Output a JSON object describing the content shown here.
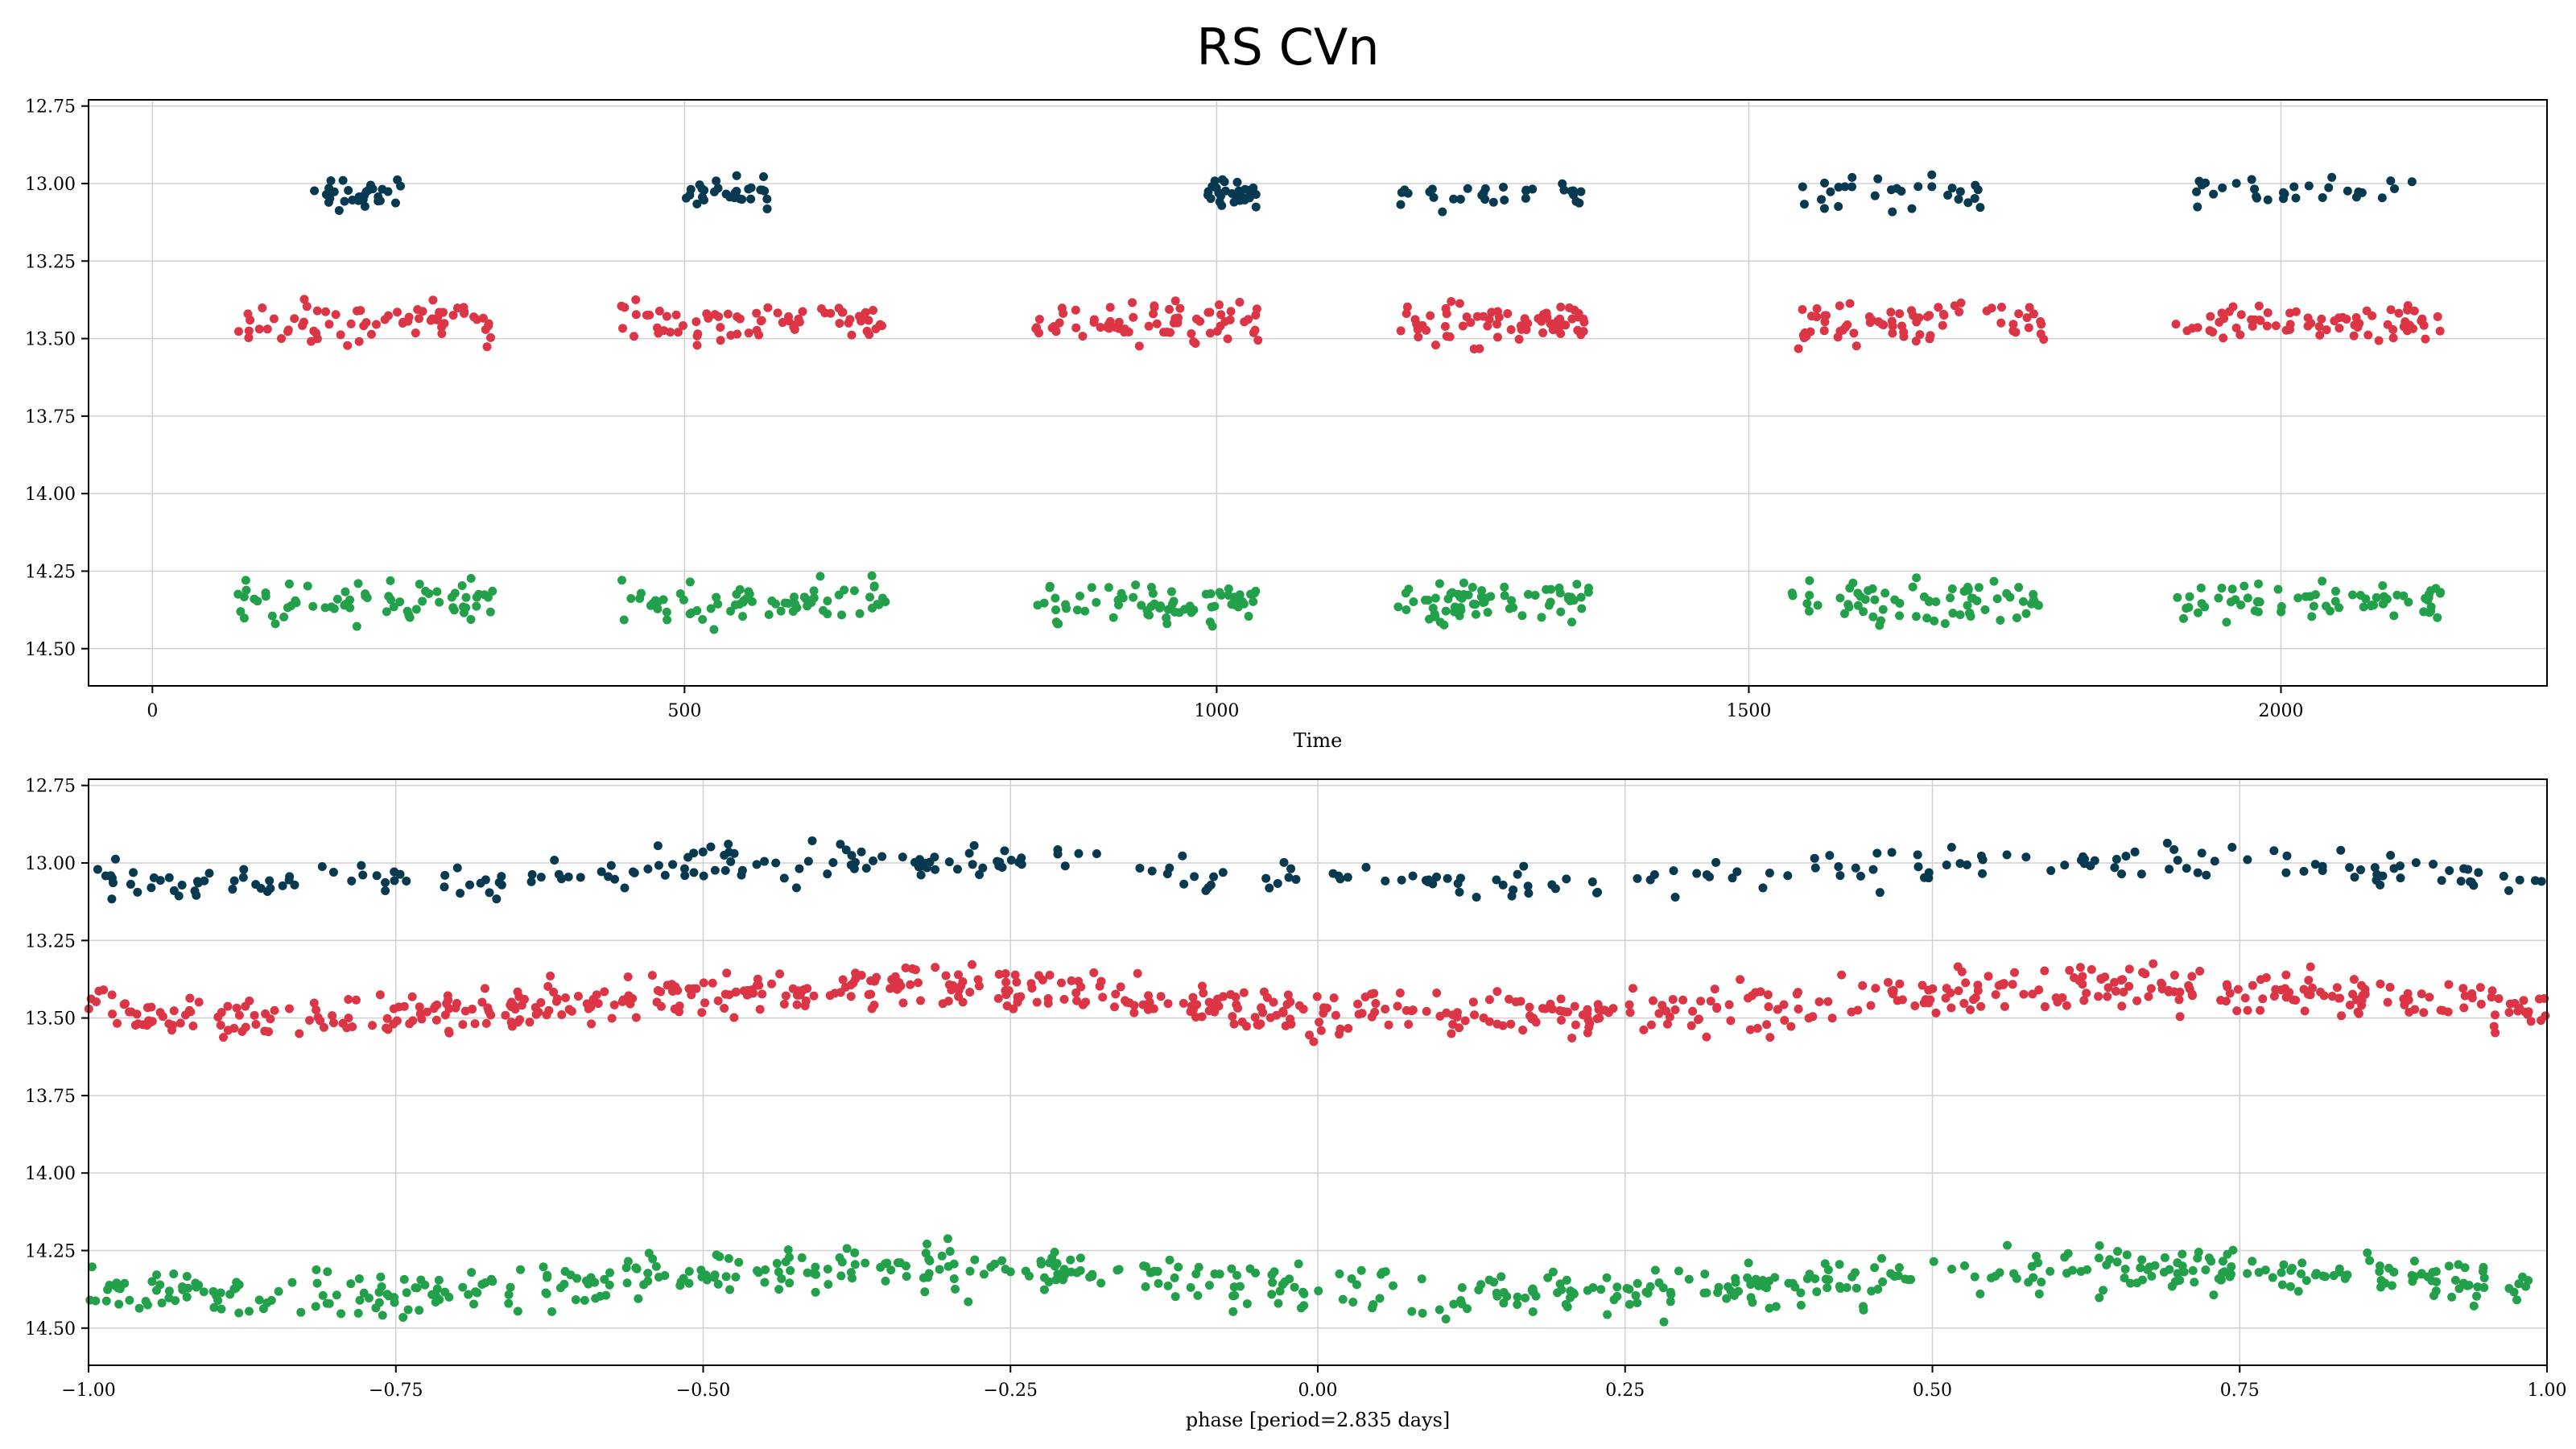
{
  "title": "RS CVn",
  "colors": {
    "top": "#073a50",
    "mid": "#dc3545",
    "bottom": "#22a04a"
  },
  "chart_data": [
    {
      "type": "scatter",
      "xlabel": "Time",
      "ylabel": "",
      "xlim": [
        -60,
        2250
      ],
      "ylim": [
        14.62,
        12.73
      ],
      "y_inverted": true,
      "grid": true,
      "xticks": [
        0,
        500,
        1000,
        1500,
        2000
      ],
      "xtick_labels": [
        "0",
        "500",
        "1000",
        "1500",
        "2000"
      ],
      "yticks": [
        12.75,
        13.0,
        13.25,
        13.5,
        13.75,
        14.0,
        14.25,
        14.5
      ],
      "ytick_labels": [
        "12.75",
        "13.00",
        "13.25",
        "13.50",
        "13.75",
        "14.00",
        "14.25",
        "14.50"
      ],
      "segments": [
        {
          "t": [
            80,
            320
          ],
          "top": [
            140,
            250
          ]
        },
        {
          "t": [
            440,
            690
          ],
          "top": [
            500,
            580
          ]
        },
        {
          "t": [
            830,
            1040
          ],
          "top": [
            990,
            1040
          ]
        },
        {
          "t": [
            1170,
            1350
          ],
          "top": [
            1170,
            1350
          ]
        },
        {
          "t": [
            1540,
            1780
          ],
          "top": [
            1540,
            1720
          ]
        },
        {
          "t": [
            1900,
            2150
          ],
          "top": [
            1920,
            2130
          ]
        }
      ],
      "series": [
        {
          "key": "top",
          "center": 13.03,
          "spread": 0.09
        },
        {
          "key": "mid",
          "center": 13.45,
          "spread": 0.12
        },
        {
          "key": "bottom",
          "center": 14.35,
          "spread": 0.12
        }
      ]
    },
    {
      "type": "scatter",
      "xlabel": "phase [period=2.835 days]",
      "ylabel": "",
      "xlim": [
        -1.0,
        1.0
      ],
      "ylim": [
        14.62,
        12.73
      ],
      "y_inverted": true,
      "grid": true,
      "xticks": [
        -1.0,
        -0.75,
        -0.5,
        -0.25,
        0.0,
        0.25,
        0.5,
        0.75,
        1.0
      ],
      "xtick_labels": [
        "−1.00",
        "−0.75",
        "−0.50",
        "−0.25",
        "0.00",
        "0.25",
        "0.50",
        "0.75",
        "1.00"
      ],
      "yticks": [
        12.75,
        13.0,
        13.25,
        13.5,
        13.75,
        14.0,
        14.25,
        14.5
      ],
      "ytick_labels": [
        "12.75",
        "13.00",
        "13.25",
        "13.50",
        "13.75",
        "14.00",
        "14.25",
        "14.50"
      ],
      "series": [
        {
          "key": "top",
          "center": 13.03,
          "spread": 0.1,
          "n": 300
        },
        {
          "key": "mid",
          "center": 13.45,
          "spread": 0.13,
          "n": 700
        },
        {
          "key": "bottom",
          "center": 14.35,
          "spread": 0.13,
          "n": 600
        }
      ]
    }
  ]
}
